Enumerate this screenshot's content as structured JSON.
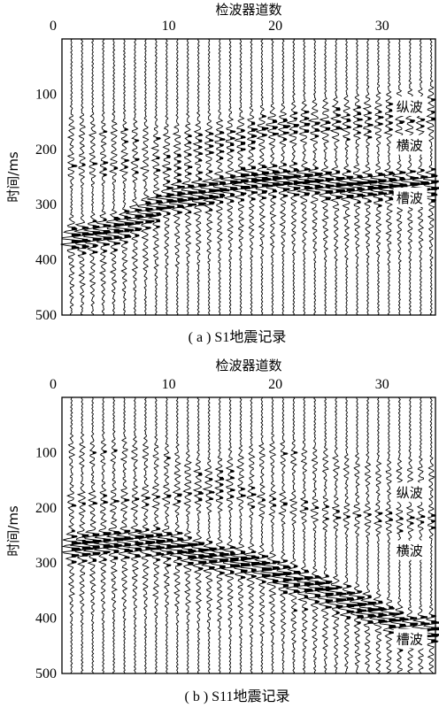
{
  "chart_data": [
    {
      "type": "seismic",
      "xlabel": "检波器道数",
      "ylabel": "时间/ms",
      "caption": "( a ) S1地震记录",
      "xticks": [
        0,
        10,
        20,
        30
      ],
      "yticks": [
        100,
        200,
        300,
        400,
        500
      ],
      "xlim": [
        0,
        35
      ],
      "ylim": [
        0,
        500
      ],
      "trace_count": 35,
      "annotations": [
        {
          "label": "纵波",
          "trace": 31,
          "time": 125
        },
        {
          "label": "横波",
          "trace": 31,
          "time": 195
        },
        {
          "label": "槽波",
          "trace": 31,
          "time": 290
        }
      ],
      "arrivals": {
        "p": [
          [
            0,
            160
          ],
          [
            10,
            180
          ],
          [
            20,
            150
          ],
          [
            30,
            120
          ],
          [
            35,
            110
          ]
        ],
        "s": [
          [
            0,
            230
          ],
          [
            10,
            230
          ],
          [
            20,
            170
          ],
          [
            30,
            160
          ],
          [
            35,
            155
          ]
        ],
        "channel": [
          [
            2,
            360
          ],
          [
            6,
            340
          ],
          [
            10,
            290
          ],
          [
            14,
            275
          ],
          [
            18,
            255
          ],
          [
            22,
            255
          ],
          [
            26,
            265
          ]
        ]
      }
    },
    {
      "type": "seismic",
      "xlabel": "检波器道数",
      "ylabel": "时间/ms",
      "caption": "( b ) S11地震记录",
      "xticks": [
        0,
        10,
        20,
        30
      ],
      "yticks": [
        100,
        200,
        300,
        400,
        500
      ],
      "xlim": [
        0,
        35
      ],
      "ylim": [
        0,
        500
      ],
      "trace_count": 35,
      "annotations": [
        {
          "label": "纵波",
          "trace": 31,
          "time": 175
        },
        {
          "label": "横波",
          "trace": 31,
          "time": 280
        },
        {
          "label": "槽波",
          "trace": 31,
          "time": 440
        }
      ],
      "arrivals": {
        "p": [
          [
            2,
            100
          ],
          [
            8,
            100
          ],
          [
            14,
            140
          ],
          [
            20,
            100
          ],
          [
            25,
            120
          ],
          [
            30,
            140
          ]
        ],
        "s": [
          [
            2,
            190
          ],
          [
            10,
            180
          ],
          [
            16,
            175
          ],
          [
            22,
            200
          ],
          [
            30,
            220
          ]
        ],
        "channel": [
          [
            1,
            270
          ],
          [
            5,
            260
          ],
          [
            10,
            265
          ],
          [
            14,
            290
          ],
          [
            18,
            300
          ],
          [
            22,
            330
          ],
          [
            26,
            360
          ],
          [
            30,
            390
          ],
          [
            33,
            420
          ]
        ]
      }
    }
  ]
}
